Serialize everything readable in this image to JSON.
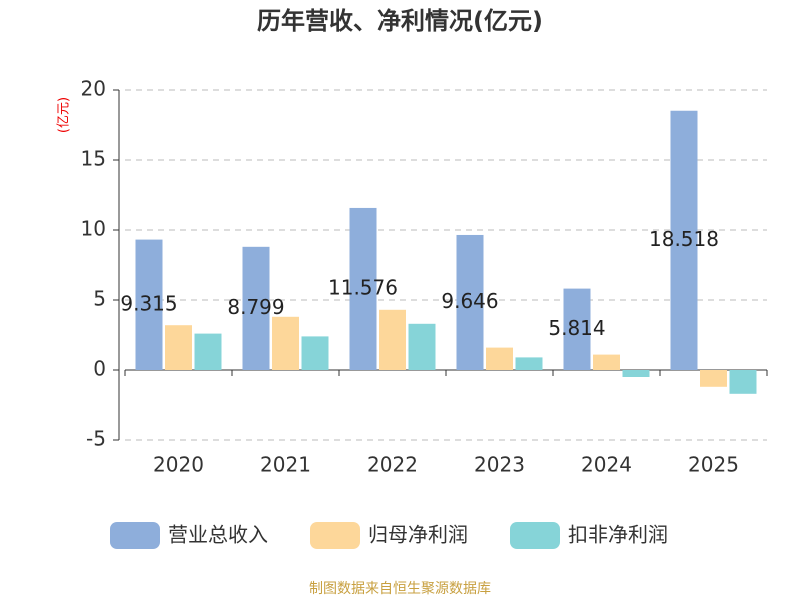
{
  "chart_data": {
    "type": "bar",
    "title": "历年营收、净利情况(亿元)",
    "y_unit": "(亿元)",
    "categories": [
      "2020",
      "2021",
      "2022",
      "2023",
      "2024",
      "2025"
    ],
    "series": [
      {
        "name": "营业总收入",
        "color": "#8eaedb",
        "values": [
          9.315,
          8.799,
          11.576,
          9.646,
          5.814,
          18.518
        ]
      },
      {
        "name": "归母净利润",
        "color": "#fdd79a",
        "values": [
          3.2,
          3.8,
          4.3,
          1.6,
          1.1,
          -1.2
        ]
      },
      {
        "name": "扣非净利润",
        "color": "#86d4d8",
        "values": [
          2.6,
          2.4,
          3.3,
          0.9,
          -0.5,
          -1.7
        ]
      }
    ],
    "labeled_series": [
      0
    ],
    "ylim": [
      -5,
      20
    ],
    "yticks": [
      -5,
      0,
      5,
      10,
      15,
      20
    ],
    "grid": true,
    "footer": "制图数据来自恒生聚源数据库"
  }
}
